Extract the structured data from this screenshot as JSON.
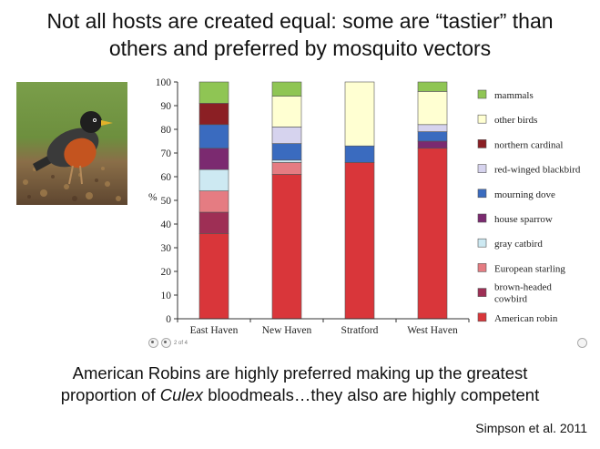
{
  "title_lines": [
    "Not all hosts are created equal: some are “tastier” than",
    "others and preferred by mosquito vectors"
  ],
  "caption": {
    "line1": "American Robins are highly preferred making up the greatest",
    "line2_pre": "proportion of ",
    "line2_em": "Culex",
    "line2_post": " bloodmeals…they also are highly competent"
  },
  "citation": "Simpson et al. 2011",
  "pager": {
    "text": "2 of 4"
  },
  "photo": {
    "icon": "american-robin-photo"
  },
  "chart_data": {
    "type": "bar",
    "stacked": true,
    "categories": [
      "East Haven",
      "New Haven",
      "Stratford",
      "West Haven"
    ],
    "ylabel": "%",
    "ylim": [
      0,
      100
    ],
    "yticks": [
      0,
      10,
      20,
      30,
      40,
      50,
      60,
      70,
      80,
      90,
      100
    ],
    "grid": false,
    "legend_position": "right",
    "series": [
      {
        "name": "American robin",
        "color": "#d9363a",
        "values": [
          36,
          61,
          66,
          72
        ]
      },
      {
        "name": "brown-headed cowbird",
        "color": "#9e2f55",
        "values": [
          9,
          0,
          0,
          0
        ]
      },
      {
        "name": "European starling",
        "color": "#e57c82",
        "values": [
          9,
          5,
          0,
          0
        ]
      },
      {
        "name": "gray catbird",
        "color": "#cde9f2",
        "values": [
          9,
          1,
          0,
          0
        ]
      },
      {
        "name": "house sparrow",
        "color": "#7b2a70",
        "values": [
          9,
          0,
          0,
          3
        ]
      },
      {
        "name": "mourning dove",
        "color": "#3a6bbf",
        "values": [
          10,
          7,
          7,
          4
        ]
      },
      {
        "name": "red-winged blackbird",
        "color": "#d6d3ee",
        "values": [
          0,
          7,
          0,
          3
        ]
      },
      {
        "name": "northern cardinal",
        "color": "#8b1f24",
        "values": [
          9,
          0,
          0,
          0
        ]
      },
      {
        "name": "other birds",
        "color": "#ffffd2",
        "values": [
          0,
          13,
          27,
          14
        ]
      },
      {
        "name": "mammals",
        "color": "#8fc554",
        "values": [
          9,
          6,
          0,
          4
        ]
      }
    ]
  }
}
